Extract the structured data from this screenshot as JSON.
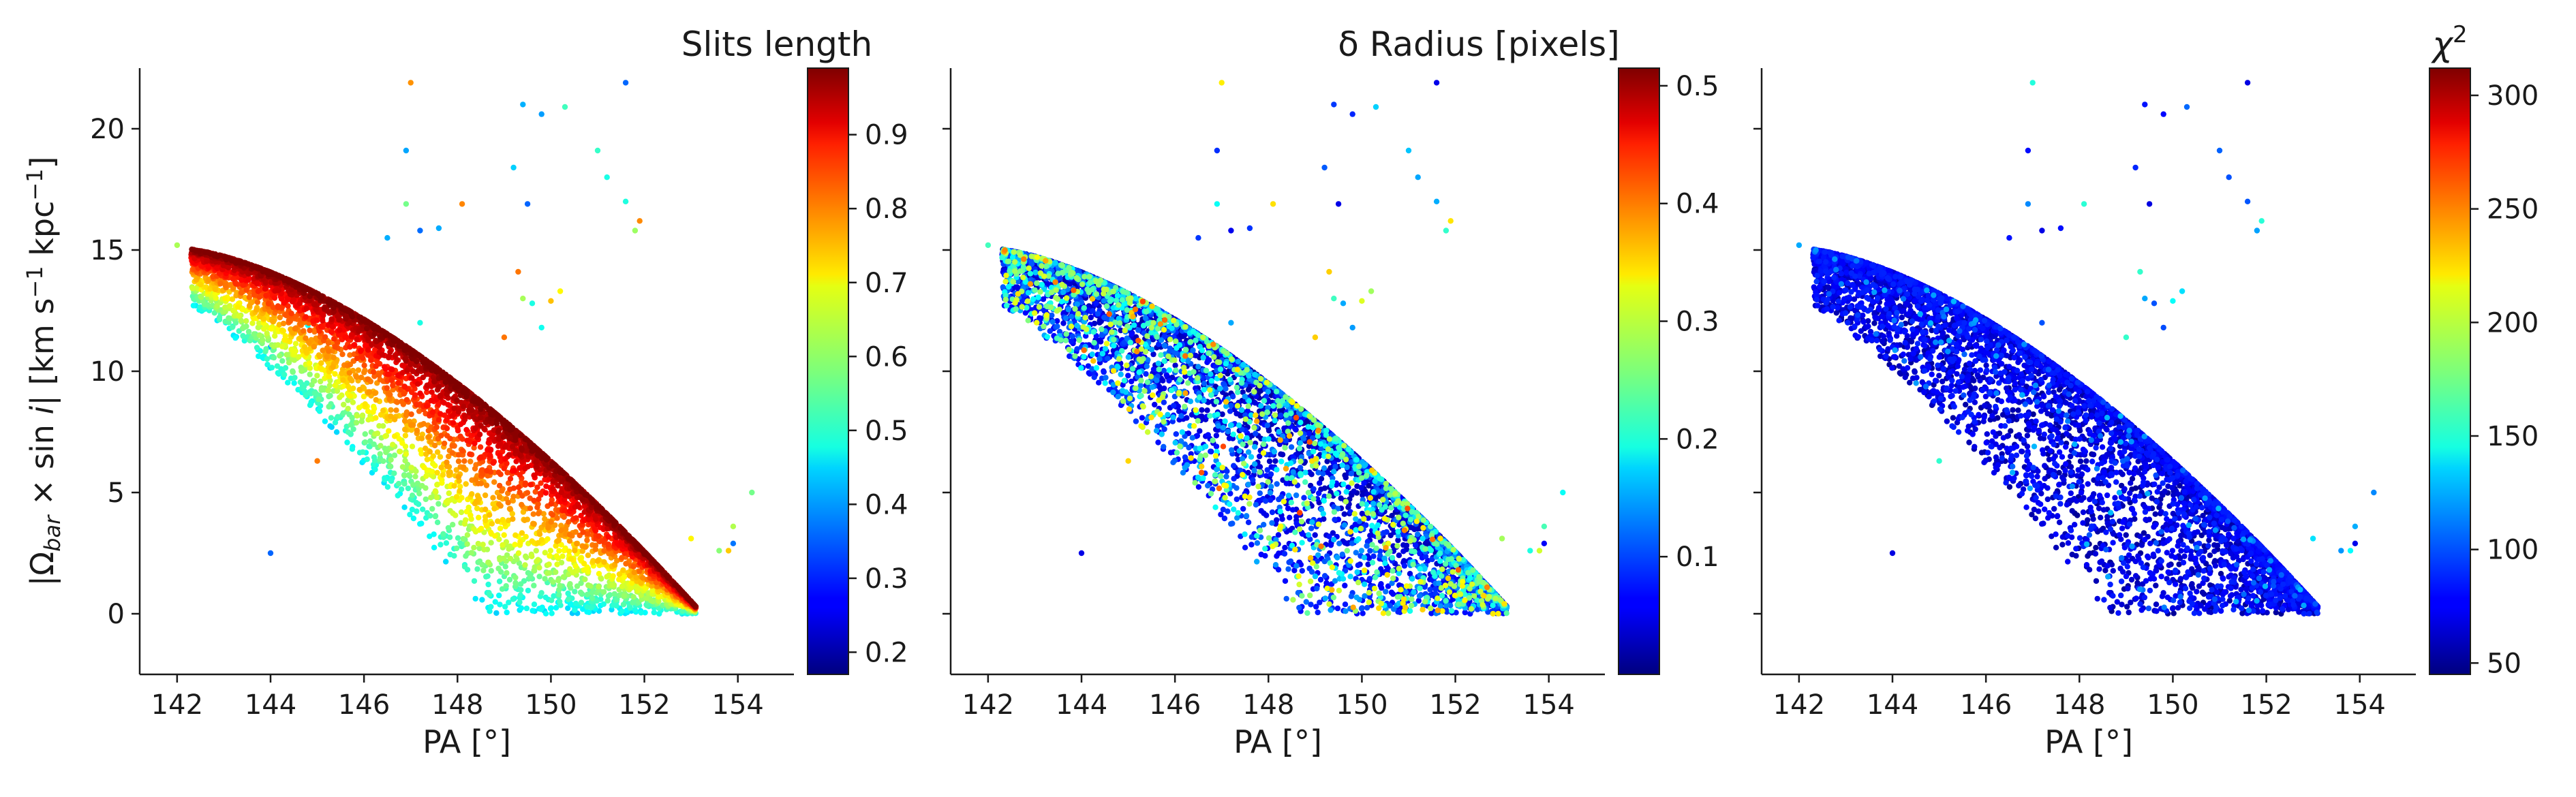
{
  "chart_data": [
    {
      "type": "scatter",
      "panel": "left",
      "title": "",
      "xlabel": "PA [°]",
      "ylabel": "|Ω_bar × sin i|   [km s⁻¹ kpc⁻¹]",
      "xlim": [
        141.2,
        155.2
      ],
      "ylim": [
        -2.5,
        22.5
      ],
      "xticks": [
        142,
        144,
        146,
        148,
        150,
        152,
        154
      ],
      "yticks": [
        0,
        5,
        10,
        15,
        20
      ],
      "show_y_tick_labels": true,
      "colorbar": {
        "title": "Slits length",
        "range": [
          0.17,
          0.99
        ],
        "ticks": [
          0.2,
          0.3,
          0.4,
          0.5,
          0.6,
          0.7,
          0.8,
          0.9
        ],
        "colormap": "jet"
      },
      "color_mode": "slits_length",
      "grid": false
    },
    {
      "type": "scatter",
      "panel": "middle",
      "title": "",
      "xlabel": "PA [°]",
      "ylabel": "",
      "xlim": [
        141.2,
        155.2
      ],
      "ylim": [
        -2.5,
        22.5
      ],
      "xticks": [
        142,
        144,
        146,
        148,
        150,
        152,
        154
      ],
      "yticks": [
        0,
        5,
        10,
        15,
        20
      ],
      "show_y_tick_labels": false,
      "colorbar": {
        "title": "δ Radius [pixels]",
        "range": [
          0.0,
          0.515
        ],
        "ticks": [
          0.1,
          0.2,
          0.3,
          0.4,
          0.5
        ],
        "colormap": "jet"
      },
      "color_mode": "delta_radius",
      "grid": false
    },
    {
      "type": "scatter",
      "panel": "right",
      "title": "",
      "xlabel": "PA [°]",
      "ylabel": "",
      "xlim": [
        141.2,
        155.2
      ],
      "ylim": [
        -2.5,
        22.5
      ],
      "xticks": [
        142,
        144,
        146,
        148,
        150,
        152,
        154
      ],
      "yticks": [
        0,
        5,
        10,
        15,
        20
      ],
      "show_y_tick_labels": false,
      "colorbar": {
        "title": "χ²",
        "range": [
          45,
          312
        ],
        "ticks": [
          50,
          100,
          150,
          200,
          250,
          300
        ],
        "colormap": "jet"
      },
      "color_mode": "chi2",
      "grid": false
    }
  ],
  "shared_points": {
    "seed": 12345,
    "n_main": 5200,
    "envelope": {
      "x_start": 141.9,
      "x_end": 153.1,
      "y_start": 15.1,
      "y_end": 0.3
    },
    "outliers": [
      [
        147.0,
        21.9
      ],
      [
        151.6,
        21.9
      ],
      [
        149.4,
        21.0
      ],
      [
        149.8,
        20.6
      ],
      [
        150.3,
        20.9
      ],
      [
        146.9,
        19.1
      ],
      [
        151.0,
        19.1
      ],
      [
        149.2,
        18.4
      ],
      [
        151.2,
        18.0
      ],
      [
        146.9,
        16.9
      ],
      [
        148.1,
        16.9
      ],
      [
        149.5,
        16.9
      ],
      [
        151.6,
        17.0
      ],
      [
        151.9,
        16.2
      ],
      [
        151.8,
        15.8
      ],
      [
        147.6,
        15.9
      ],
      [
        147.2,
        15.8
      ],
      [
        146.5,
        15.5
      ],
      [
        149.3,
        14.1
      ],
      [
        149.4,
        13.0
      ],
      [
        150.2,
        13.3
      ],
      [
        150.0,
        12.9
      ],
      [
        149.6,
        12.8
      ],
      [
        147.2,
        12.0
      ],
      [
        144.0,
        11.0
      ],
      [
        144.8,
        11.9
      ],
      [
        149.0,
        11.4
      ],
      [
        149.8,
        11.8
      ],
      [
        145.0,
        6.3
      ],
      [
        144.0,
        2.5
      ],
      [
        153.0,
        3.1
      ],
      [
        153.9,
        3.6
      ],
      [
        154.3,
        5.0
      ],
      [
        153.6,
        2.6
      ],
      [
        153.8,
        2.6
      ],
      [
        153.9,
        2.9
      ],
      [
        142.0,
        15.2
      ]
    ]
  }
}
